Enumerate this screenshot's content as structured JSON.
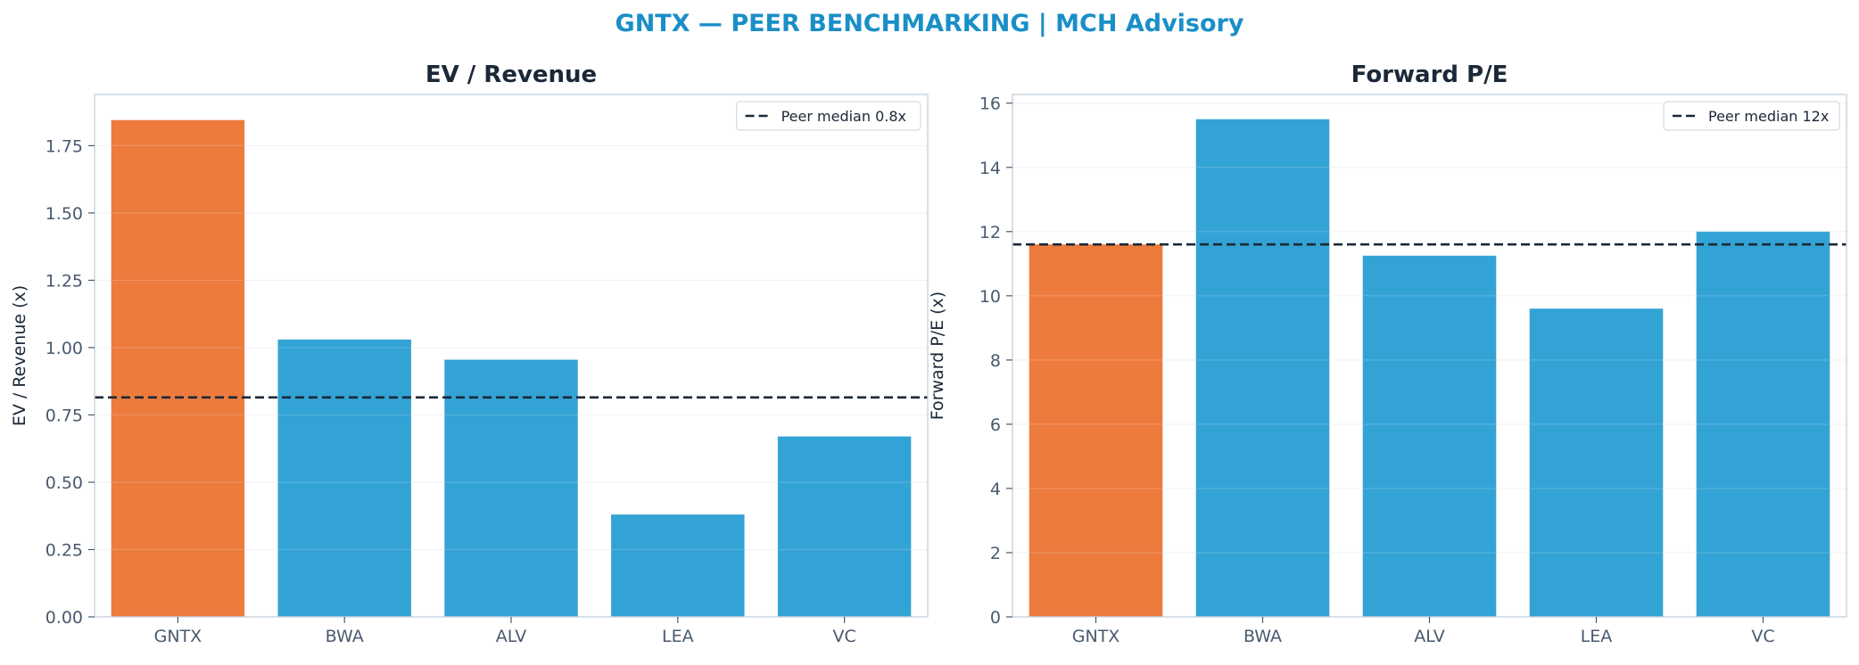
{
  "figure_title": "GNTX — PEER BENCHMARKING | MCH Advisory",
  "colors": {
    "title": "#1a8fc7",
    "highlight": "#ed7b3e",
    "peer": "#33a3d5",
    "median_line": "#1b2838",
    "text_dark": "#1b2838",
    "tick_text": "#4a5a6e",
    "axis": "#c9d3dd",
    "grid": "#eef1f4"
  },
  "chart_data": [
    {
      "type": "bar",
      "title": "EV / Revenue",
      "ylabel": "EV / Revenue (x)",
      "xlabel": "",
      "categories": [
        "GNTX",
        "BWA",
        "ALV",
        "LEA",
        "VC"
      ],
      "values": [
        1.845,
        1.03,
        0.955,
        0.38,
        0.67
      ],
      "highlight_category": "GNTX",
      "ylim": [
        0,
        1.94
      ],
      "yticks": [
        0,
        0.25,
        0.5,
        0.75,
        1.0,
        1.25,
        1.5,
        1.75
      ],
      "ytick_labels": [
        "0.00",
        "0.25",
        "0.50",
        "0.75",
        "1.00",
        "1.25",
        "1.50",
        "1.75"
      ],
      "reference_line": {
        "value": 0.815,
        "label": "Peer median 0.8x",
        "style": "dashed"
      },
      "legend": "top-right",
      "grid": true
    },
    {
      "type": "bar",
      "title": "Forward P/E",
      "ylabel": "Forward P/E (x)",
      "xlabel": "",
      "categories": [
        "GNTX",
        "BWA",
        "ALV",
        "LEA",
        "VC"
      ],
      "values": [
        11.6,
        15.5,
        11.25,
        9.6,
        12.0
      ],
      "highlight_category": "GNTX",
      "ylim": [
        0,
        16.27
      ],
      "yticks": [
        0,
        2,
        4,
        6,
        8,
        10,
        12,
        14,
        16
      ],
      "ytick_labels": [
        "0",
        "2",
        "4",
        "6",
        "8",
        "10",
        "12",
        "14",
        "16"
      ],
      "reference_line": {
        "value": 11.6,
        "label": "Peer median 12x",
        "style": "dashed"
      },
      "legend": "top-right",
      "grid": true
    }
  ]
}
